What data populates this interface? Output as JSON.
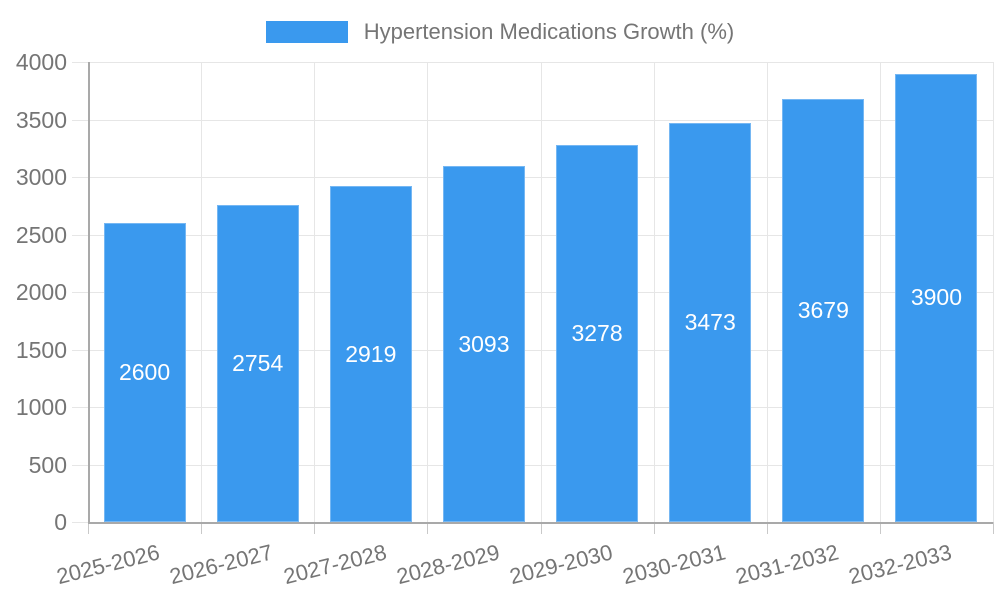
{
  "chart_data": {
    "type": "bar",
    "title": "Hypertension Medications Growth (%)",
    "categories": [
      "2025-2026",
      "2026-2027",
      "2027-2028",
      "2028-2029",
      "2029-2030",
      "2030-2031",
      "2031-2032",
      "2032-2033"
    ],
    "values": [
      2600,
      2754,
      2919,
      3093,
      3278,
      3473,
      3679,
      3900
    ],
    "value_labels": [
      "2600",
      "2754",
      "2919",
      "3093",
      "3278",
      "3473",
      "3679",
      "3900"
    ],
    "xlabel": "",
    "ylabel": "",
    "ylim": [
      0,
      4000
    ],
    "ytick_step": 500,
    "yticks": [
      0,
      500,
      1000,
      1500,
      2000,
      2500,
      3000,
      3500,
      4000
    ],
    "ytick_labels": [
      "0",
      "500",
      "1000",
      "1500",
      "2000",
      "2500",
      "3000",
      "3500",
      "4000"
    ],
    "grid": true,
    "legend_position": "top-center",
    "colors": {
      "bar": "#3a99ee",
      "value_label": "#ffffff",
      "grid": "#e6e6e6",
      "axis": "#a9a9a9",
      "tick_mark": "#c9c9c9",
      "tick_text": "#757575"
    }
  }
}
